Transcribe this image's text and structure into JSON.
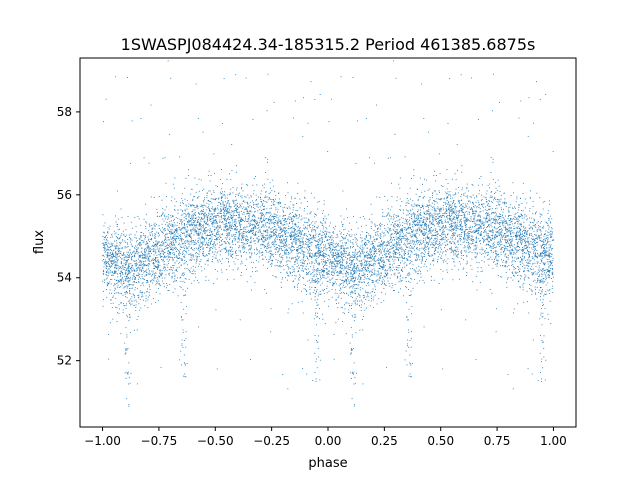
{
  "chart_data": {
    "type": "scatter",
    "title": "1SWASPJ084424.34-185315.2 Period 461385.6875s",
    "xlabel": "phase",
    "ylabel": "flux",
    "xlim": [
      -1.1,
      1.1
    ],
    "ylim": [
      50.4,
      59.3
    ],
    "xticks": [
      -1.0,
      -0.75,
      -0.5,
      -0.25,
      0.0,
      0.25,
      0.5,
      0.75,
      1.0
    ],
    "xtick_labels": [
      "−1.00",
      "−0.75",
      "−0.50",
      "−0.25",
      "0.00",
      "0.25",
      "0.50",
      "0.75",
      "1.00"
    ],
    "yticks": [
      52,
      54,
      56,
      58
    ],
    "ytick_labels": [
      "52",
      "54",
      "56",
      "58"
    ],
    "grid": false,
    "legend": "none",
    "marker_color": "#1f77b4",
    "phase_fold": {
      "mean_flux_profile": {
        "phase": [
          0.0,
          0.05,
          0.1,
          0.15,
          0.2,
          0.25,
          0.3,
          0.35,
          0.4,
          0.45,
          0.5,
          0.55,
          0.6,
          0.65,
          0.7,
          0.75,
          0.8,
          0.85,
          0.9,
          0.95,
          1.0
        ],
        "flux": [
          54.5,
          54.45,
          54.2,
          54.1,
          54.5,
          54.6,
          54.8,
          54.95,
          55.1,
          55.2,
          55.25,
          55.3,
          55.3,
          55.2,
          55.2,
          55.1,
          55.0,
          54.9,
          54.7,
          54.55,
          54.5
        ]
      },
      "dips": [
        {
          "phase": 0.11,
          "min_flux": 50.9
        },
        {
          "phase": 0.36,
          "min_flux": 51.3
        },
        {
          "phase": 0.95,
          "min_flux": 51.5
        }
      ]
    }
  }
}
